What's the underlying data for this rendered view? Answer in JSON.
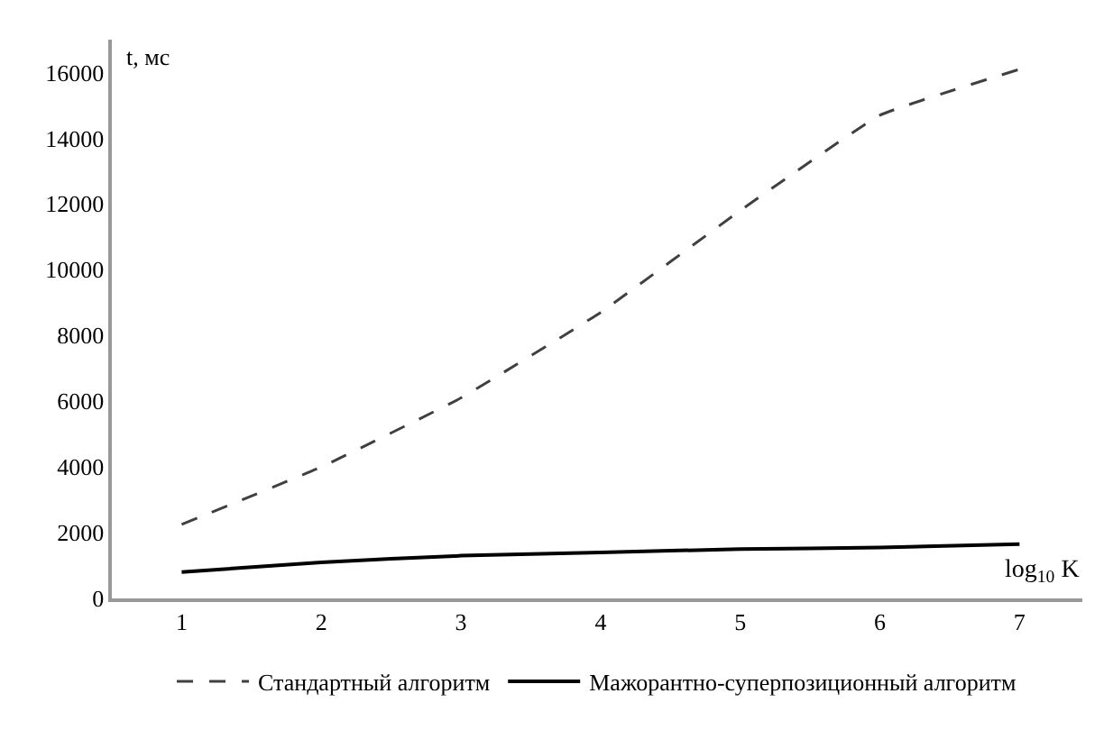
{
  "chart_data": {
    "type": "line",
    "xlabel": "log$_{10}$ K",
    "ylabel": "t, мс",
    "x": [
      1,
      2,
      3,
      4,
      5,
      6,
      7
    ],
    "xlim": [
      0.5,
      7.45
    ],
    "xticks": [
      1,
      2,
      3,
      4,
      5,
      6,
      7
    ],
    "ylim": [
      0,
      17000
    ],
    "yticks": [
      0,
      2000,
      4000,
      6000,
      8000,
      10000,
      12000,
      14000,
      16000
    ],
    "legend": "bottom",
    "marker": "none",
    "series": [
      {
        "name": "Стандартный алгоритм",
        "color": "#404040",
        "line_style": "dashed",
        "values": [
          2250,
          4000,
          6100,
          8700,
          11800,
          14700,
          16100
        ]
      },
      {
        "name": "Мажорантно-суперпозиционный алгоритм",
        "color": "#000000",
        "line_style": "solid",
        "values": [
          800,
          1100,
          1300,
          1400,
          1500,
          1550,
          1650
        ]
      }
    ]
  }
}
